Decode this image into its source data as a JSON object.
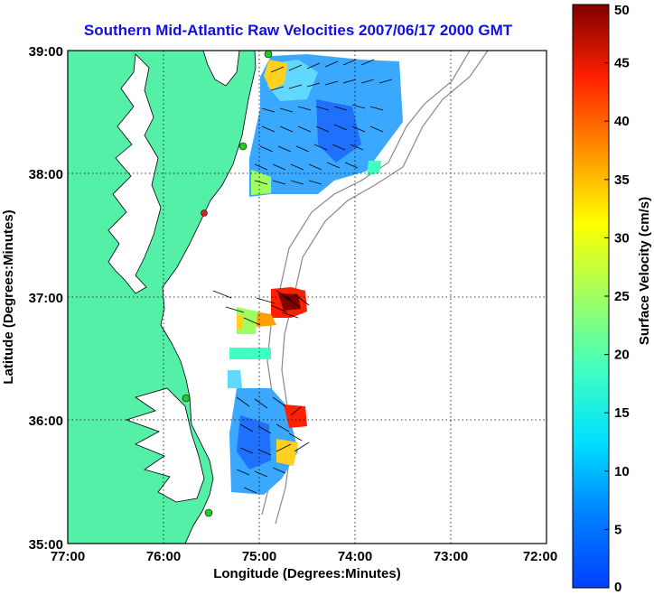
{
  "title": "Southern Mid-Atlantic Raw Velocities 2007/06/17 2000 GMT",
  "x_axis": {
    "label": "Longitude (Degrees:Minutes)",
    "ticks": [
      "77:00",
      "76:00",
      "75:00",
      "74:00",
      "73:00",
      "72:00"
    ]
  },
  "y_axis": {
    "label": "Latitude (Degrees:Minutes)",
    "ticks": [
      "39:00",
      "38:00",
      "37:00",
      "36:00",
      "35:00"
    ]
  },
  "colorbar": {
    "label": "Surface Velocity (cm/s)",
    "ticks": [
      "50",
      "45",
      "40",
      "35",
      "30",
      "25",
      "20",
      "15",
      "10",
      "5",
      "0"
    ],
    "min": 0,
    "max": 50
  },
  "colors": {
    "land": "#55f0a8",
    "title": "#1010e0",
    "station_active": "#22cc22",
    "station_inactive": "#dd2222"
  }
}
